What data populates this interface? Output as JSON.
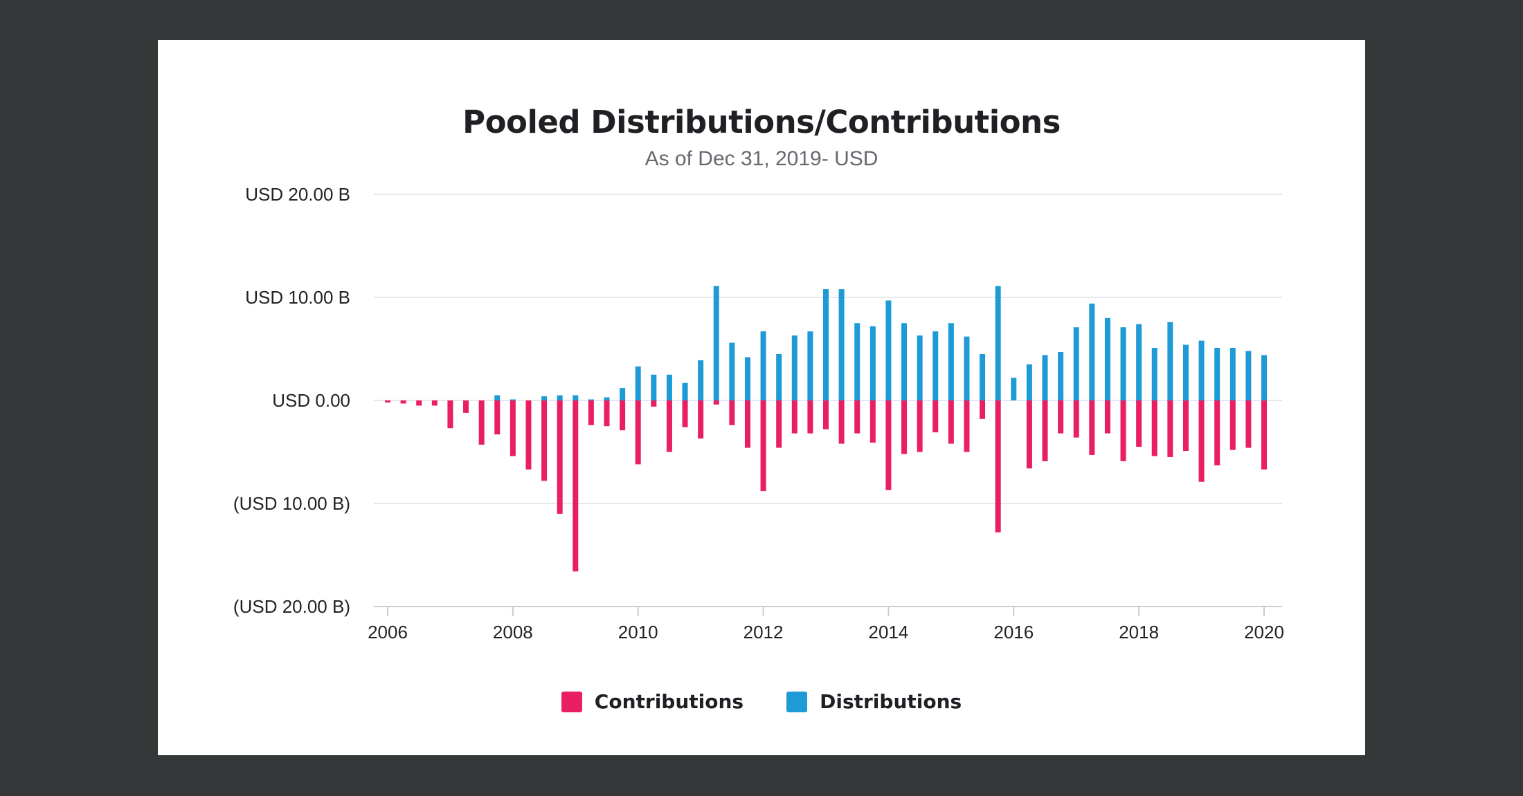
{
  "chart_data": {
    "type": "bar",
    "title": "Pooled Distributions/Contributions",
    "subtitle": "As of Dec 31, 2019- USD",
    "xlabel": "",
    "ylabel": "",
    "ylim": [
      -20,
      20
    ],
    "xlim": [
      2006,
      2020
    ],
    "y_ticks": [
      {
        "value": 20,
        "label": "USD 20.00 B"
      },
      {
        "value": 10,
        "label": "USD 10.00 B"
      },
      {
        "value": 0,
        "label": "USD 0.00"
      },
      {
        "value": -10,
        "label": "(USD  10.00  B)"
      },
      {
        "value": -20,
        "label": "(USD 20.00 B)"
      }
    ],
    "x_ticks": [
      {
        "value": 2006,
        "label": "2006"
      },
      {
        "value": 2008,
        "label": "2008"
      },
      {
        "value": 2010,
        "label": "2010"
      },
      {
        "value": 2012,
        "label": "2012"
      },
      {
        "value": 2014,
        "label": "2014"
      },
      {
        "value": 2016,
        "label": "2016"
      },
      {
        "value": 2018,
        "label": "2018"
      },
      {
        "value": 2020,
        "label": "2020"
      }
    ],
    "x": [
      2006.0,
      2006.25,
      2006.5,
      2006.75,
      2007.0,
      2007.25,
      2007.5,
      2007.75,
      2008.0,
      2008.25,
      2008.5,
      2008.75,
      2009.0,
      2009.25,
      2009.5,
      2009.75,
      2010.0,
      2010.25,
      2010.5,
      2010.75,
      2011.0,
      2011.25,
      2011.5,
      2011.75,
      2012.0,
      2012.25,
      2012.5,
      2012.75,
      2013.0,
      2013.25,
      2013.5,
      2013.75,
      2014.0,
      2014.25,
      2014.5,
      2014.75,
      2015.0,
      2015.25,
      2015.5,
      2015.75,
      2016.0,
      2016.25,
      2016.5,
      2016.75,
      2017.0,
      2017.25,
      2017.5,
      2017.75,
      2018.0,
      2018.25,
      2018.5,
      2018.75,
      2019.0,
      2019.25,
      2019.5,
      2019.75,
      2020.0
    ],
    "series": [
      {
        "name": "Contributions",
        "color": "#e91e63",
        "values": [
          -0.2,
          -0.3,
          -0.5,
          -0.5,
          -2.7,
          -1.2,
          -4.3,
          -3.3,
          -5.4,
          -6.7,
          -7.8,
          -11.0,
          -16.6,
          -2.4,
          -2.5,
          -2.9,
          -6.2,
          -0.6,
          -5.0,
          -2.6,
          -3.7,
          -0.4,
          -2.4,
          -4.6,
          -8.8,
          -4.6,
          -3.2,
          -3.2,
          -2.8,
          -4.2,
          -3.2,
          -4.1,
          -8.7,
          -5.2,
          -5.0,
          -3.1,
          -4.2,
          -5.0,
          -1.8,
          -12.8,
          0.0,
          -6.6,
          -5.9,
          -3.2,
          -3.6,
          -5.3,
          -3.2,
          -5.9,
          -4.5,
          -5.4,
          -5.5,
          -4.9,
          -7.9,
          -6.3,
          -4.8,
          -4.6,
          -6.7
        ]
      },
      {
        "name": "Distributions",
        "color": "#1e9bd7",
        "values": [
          0.0,
          0.0,
          0.0,
          0.0,
          0.0,
          0.0,
          0.0,
          0.5,
          0.1,
          0.0,
          0.4,
          0.5,
          0.5,
          0.1,
          0.3,
          1.2,
          3.3,
          2.5,
          2.5,
          1.7,
          3.9,
          11.1,
          5.6,
          4.2,
          6.7,
          4.5,
          6.3,
          6.7,
          10.8,
          10.8,
          7.5,
          7.2,
          9.7,
          7.5,
          6.3,
          6.7,
          7.5,
          6.2,
          4.5,
          11.1,
          2.2,
          3.5,
          4.4,
          4.7,
          7.1,
          9.4,
          8.0,
          7.1,
          7.4,
          5.1,
          7.6,
          5.4,
          5.8,
          5.1,
          5.1,
          4.8,
          4.4
        ]
      }
    ],
    "legend": {
      "position": "bottom",
      "items": [
        {
          "label": "Contributions",
          "color": "#e91e63"
        },
        {
          "label": "Distributions",
          "color": "#1e9bd7"
        }
      ]
    },
    "grid": true
  }
}
